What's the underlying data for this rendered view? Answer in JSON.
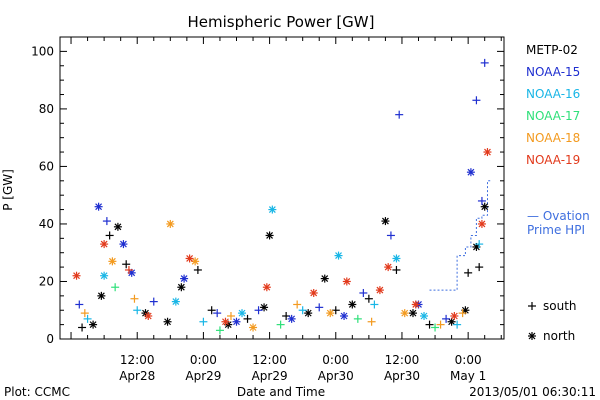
{
  "chart_data": {
    "type": "scatter",
    "title": "Hemispheric Power [GW]",
    "ylabel": "P [GW]",
    "xlabel": "Date and Time",
    "ylim": [
      0,
      105
    ],
    "xlim": [
      "2013-04-27 22:00",
      "2013-05-01 06:30"
    ],
    "yticks": [
      0,
      20,
      40,
      60,
      80,
      100
    ],
    "xticks": [
      {
        "at": "2013-04-28 12:00",
        "time": "12:00",
        "date": "Apr28"
      },
      {
        "at": "2013-04-29 00:00",
        "time": "0:00",
        "date": "Apr29"
      },
      {
        "at": "2013-04-29 12:00",
        "time": "12:00",
        "date": "Apr29"
      },
      {
        "at": "2013-04-30 00:00",
        "time": "0:00",
        "date": "Apr30"
      },
      {
        "at": "2013-04-30 12:00",
        "time": "12:00",
        "date": "Apr30"
      },
      {
        "at": "2013-05-01 00:00",
        "time": "0:00",
        "date": "May 1"
      }
    ],
    "legend_position": "right",
    "marker_legend": [
      {
        "symbol": "+",
        "label": "south"
      },
      {
        "symbol": "*",
        "label": "north"
      }
    ],
    "ovation_label_line1": "— Ovation",
    "ovation_label_line2": "Prime HPI",
    "ovation_color": "#3f6fdf",
    "ovation": [
      {
        "x": "2013-04-30 17:00",
        "y": 17
      },
      {
        "x": "2013-04-30 22:00",
        "y": 17
      },
      {
        "x": "2013-04-30 22:00",
        "y": 29
      },
      {
        "x": "2013-04-30 23:30",
        "y": 29
      },
      {
        "x": "2013-04-30 23:30",
        "y": 32
      },
      {
        "x": "2013-05-01 00:30",
        "y": 32
      },
      {
        "x": "2013-05-01 00:30",
        "y": 36
      },
      {
        "x": "2013-05-01 01:30",
        "y": 36
      },
      {
        "x": "2013-05-01 01:30",
        "y": 42
      },
      {
        "x": "2013-05-01 02:30",
        "y": 42
      },
      {
        "x": "2013-05-01 02:30",
        "y": 43
      },
      {
        "x": "2013-05-01 03:30",
        "y": 43
      },
      {
        "x": "2013-05-01 03:30",
        "y": 55
      },
      {
        "x": "2013-05-01 04:00",
        "y": 55
      }
    ],
    "series": [
      {
        "name": "METP-02",
        "color": "#000000",
        "points": [
          {
            "x": "2013-04-28 02:00",
            "y": 4,
            "m": "+"
          },
          {
            "x": "2013-04-28 04:00",
            "y": 5,
            "m": "*"
          },
          {
            "x": "2013-04-28 05:30",
            "y": 15,
            "m": "*"
          },
          {
            "x": "2013-04-28 07:00",
            "y": 36,
            "m": "+"
          },
          {
            "x": "2013-04-28 08:30",
            "y": 39,
            "m": "*"
          },
          {
            "x": "2013-04-28 10:00",
            "y": 26,
            "m": "+"
          },
          {
            "x": "2013-04-28 13:30",
            "y": 9,
            "m": "*"
          },
          {
            "x": "2013-04-28 17:30",
            "y": 6,
            "m": "*"
          },
          {
            "x": "2013-04-28 20:00",
            "y": 18,
            "m": "*"
          },
          {
            "x": "2013-04-28 23:00",
            "y": 24,
            "m": "+"
          },
          {
            "x": "2013-04-29 01:30",
            "y": 10,
            "m": "+"
          },
          {
            "x": "2013-04-29 04:30",
            "y": 5,
            "m": "*"
          },
          {
            "x": "2013-04-29 08:00",
            "y": 7,
            "m": "+"
          },
          {
            "x": "2013-04-29 11:00",
            "y": 11,
            "m": "*"
          },
          {
            "x": "2013-04-29 12:00",
            "y": 36,
            "m": "*"
          },
          {
            "x": "2013-04-29 15:00",
            "y": 8,
            "m": "+"
          },
          {
            "x": "2013-04-29 19:00",
            "y": 9,
            "m": "*"
          },
          {
            "x": "2013-04-29 22:00",
            "y": 21,
            "m": "*"
          },
          {
            "x": "2013-04-30 00:00",
            "y": 10,
            "m": "+"
          },
          {
            "x": "2013-04-30 03:00",
            "y": 12,
            "m": "*"
          },
          {
            "x": "2013-04-30 06:00",
            "y": 14,
            "m": "+"
          },
          {
            "x": "2013-04-30 09:00",
            "y": 41,
            "m": "*"
          },
          {
            "x": "2013-04-30 11:00",
            "y": 24,
            "m": "+"
          },
          {
            "x": "2013-04-30 14:00",
            "y": 9,
            "m": "*"
          },
          {
            "x": "2013-04-30 17:00",
            "y": 5,
            "m": "+"
          },
          {
            "x": "2013-04-30 21:00",
            "y": 6,
            "m": "*"
          },
          {
            "x": "2013-04-30 23:30",
            "y": 10,
            "m": "*"
          },
          {
            "x": "2013-05-01 00:00",
            "y": 23,
            "m": "+"
          },
          {
            "x": "2013-05-01 01:30",
            "y": 32,
            "m": "*"
          },
          {
            "x": "2013-05-01 02:00",
            "y": 25,
            "m": "+"
          },
          {
            "x": "2013-05-01 03:00",
            "y": 46,
            "m": "*"
          }
        ]
      },
      {
        "name": "NOAA-15",
        "color": "#1f2fd0",
        "points": [
          {
            "x": "2013-04-28 01:30",
            "y": 12,
            "m": "+"
          },
          {
            "x": "2013-04-28 05:00",
            "y": 46,
            "m": "*"
          },
          {
            "x": "2013-04-28 06:30",
            "y": 41,
            "m": "+"
          },
          {
            "x": "2013-04-28 09:30",
            "y": 33,
            "m": "*"
          },
          {
            "x": "2013-04-28 11:00",
            "y": 23,
            "m": "*"
          },
          {
            "x": "2013-04-28 15:00",
            "y": 13,
            "m": "+"
          },
          {
            "x": "2013-04-28 20:30",
            "y": 21,
            "m": "*"
          },
          {
            "x": "2013-04-29 02:30",
            "y": 9,
            "m": "+"
          },
          {
            "x": "2013-04-29 06:00",
            "y": 6,
            "m": "*"
          },
          {
            "x": "2013-04-29 10:00",
            "y": 10,
            "m": "+"
          },
          {
            "x": "2013-04-29 16:00",
            "y": 7,
            "m": "*"
          },
          {
            "x": "2013-04-29 21:00",
            "y": 11,
            "m": "+"
          },
          {
            "x": "2013-04-30 01:30",
            "y": 8,
            "m": "*"
          },
          {
            "x": "2013-04-30 05:00",
            "y": 16,
            "m": "+"
          },
          {
            "x": "2013-04-30 10:00",
            "y": 36,
            "m": "+"
          },
          {
            "x": "2013-04-30 11:30",
            "y": 78,
            "m": "+"
          },
          {
            "x": "2013-04-30 15:00",
            "y": 12,
            "m": "*"
          },
          {
            "x": "2013-04-30 20:00",
            "y": 7,
            "m": "+"
          },
          {
            "x": "2013-05-01 00:30",
            "y": 58,
            "m": "*"
          },
          {
            "x": "2013-05-01 01:30",
            "y": 83,
            "m": "+"
          },
          {
            "x": "2013-05-01 02:30",
            "y": 48,
            "m": "+"
          },
          {
            "x": "2013-05-01 03:00",
            "y": 96,
            "m": "+"
          }
        ]
      },
      {
        "name": "NOAA-16",
        "color": "#19b6e6",
        "points": [
          {
            "x": "2013-04-28 03:00",
            "y": 7,
            "m": "+"
          },
          {
            "x": "2013-04-28 06:00",
            "y": 22,
            "m": "*"
          },
          {
            "x": "2013-04-28 12:00",
            "y": 10,
            "m": "+"
          },
          {
            "x": "2013-04-28 19:00",
            "y": 13,
            "m": "*"
          },
          {
            "x": "2013-04-29 00:00",
            "y": 6,
            "m": "+"
          },
          {
            "x": "2013-04-29 07:00",
            "y": 9,
            "m": "*"
          },
          {
            "x": "2013-04-29 12:30",
            "y": 45,
            "m": "*"
          },
          {
            "x": "2013-04-29 18:00",
            "y": 10,
            "m": "+"
          },
          {
            "x": "2013-04-30 00:30",
            "y": 29,
            "m": "*"
          },
          {
            "x": "2013-04-30 07:00",
            "y": 12,
            "m": "+"
          },
          {
            "x": "2013-04-30 11:00",
            "y": 28,
            "m": "*"
          },
          {
            "x": "2013-04-30 16:00",
            "y": 8,
            "m": "*"
          },
          {
            "x": "2013-04-30 22:00",
            "y": 5,
            "m": "+"
          },
          {
            "x": "2013-05-01 02:00",
            "y": 33,
            "m": "+"
          }
        ]
      },
      {
        "name": "NOAA-17",
        "color": "#2fe07a",
        "points": [
          {
            "x": "2013-04-28 08:00",
            "y": 18,
            "m": "+"
          },
          {
            "x": "2013-04-29 03:00",
            "y": 3,
            "m": "+"
          },
          {
            "x": "2013-04-29 14:00",
            "y": 5,
            "m": "+"
          },
          {
            "x": "2013-04-30 04:00",
            "y": 7,
            "m": "+"
          },
          {
            "x": "2013-04-30 18:00",
            "y": 4,
            "m": "+"
          }
        ]
      },
      {
        "name": "NOAA-18",
        "color": "#f39a1f",
        "points": [
          {
            "x": "2013-04-28 02:30",
            "y": 9,
            "m": "+"
          },
          {
            "x": "2013-04-28 07:30",
            "y": 27,
            "m": "*"
          },
          {
            "x": "2013-04-28 11:30",
            "y": 14,
            "m": "+"
          },
          {
            "x": "2013-04-28 18:00",
            "y": 40,
            "m": "*"
          },
          {
            "x": "2013-04-28 22:30",
            "y": 27,
            "m": "*"
          },
          {
            "x": "2013-04-29 05:00",
            "y": 8,
            "m": "+"
          },
          {
            "x": "2013-04-29 09:00",
            "y": 4,
            "m": "*"
          },
          {
            "x": "2013-04-29 17:00",
            "y": 12,
            "m": "+"
          },
          {
            "x": "2013-04-29 23:00",
            "y": 9,
            "m": "*"
          },
          {
            "x": "2013-04-30 06:30",
            "y": 6,
            "m": "+"
          },
          {
            "x": "2013-04-30 12:30",
            "y": 9,
            "m": "*"
          },
          {
            "x": "2013-04-30 19:00",
            "y": 5,
            "m": "+"
          },
          {
            "x": "2013-04-30 23:00",
            "y": 9,
            "m": "+"
          }
        ]
      },
      {
        "name": "NOAA-19",
        "color": "#e23a1c",
        "points": [
          {
            "x": "2013-04-28 01:00",
            "y": 22,
            "m": "*"
          },
          {
            "x": "2013-04-28 06:00",
            "y": 33,
            "m": "*"
          },
          {
            "x": "2013-04-28 10:30",
            "y": 24,
            "m": "+"
          },
          {
            "x": "2013-04-28 14:00",
            "y": 8,
            "m": "*"
          },
          {
            "x": "2013-04-28 21:30",
            "y": 28,
            "m": "*"
          },
          {
            "x": "2013-04-29 04:00",
            "y": 6,
            "m": "*"
          },
          {
            "x": "2013-04-29 11:30",
            "y": 18,
            "m": "*"
          },
          {
            "x": "2013-04-29 20:00",
            "y": 16,
            "m": "*"
          },
          {
            "x": "2013-04-30 02:00",
            "y": 20,
            "m": "*"
          },
          {
            "x": "2013-04-30 08:00",
            "y": 17,
            "m": "*"
          },
          {
            "x": "2013-04-30 09:30",
            "y": 25,
            "m": "*"
          },
          {
            "x": "2013-04-30 14:30",
            "y": 12,
            "m": "*"
          },
          {
            "x": "2013-04-30 21:30",
            "y": 8,
            "m": "*"
          },
          {
            "x": "2013-05-01 02:30",
            "y": 40,
            "m": "*"
          },
          {
            "x": "2013-05-01 03:30",
            "y": 65,
            "m": "*"
          }
        ]
      }
    ]
  },
  "footer": {
    "plot_credit": "Plot: CCMC",
    "timestamp": "2013/05/01 06:30:11"
  }
}
